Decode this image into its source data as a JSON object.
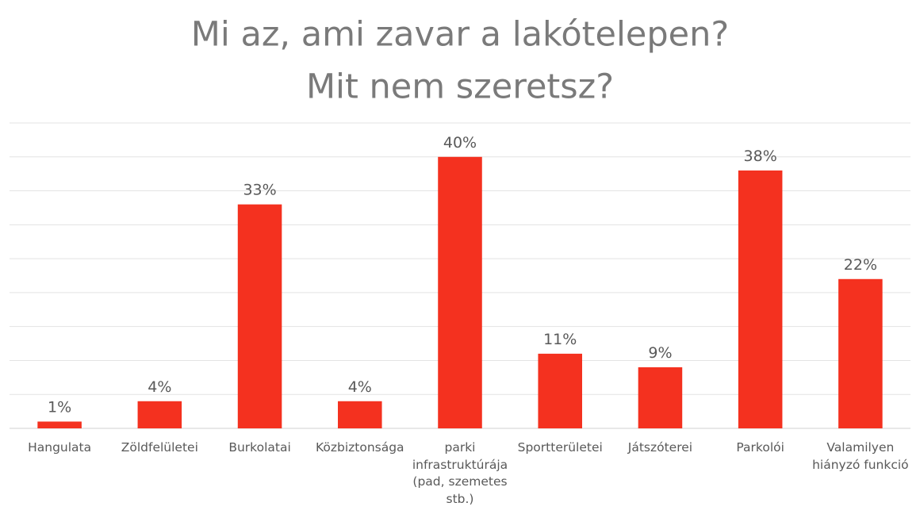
{
  "chart_data": {
    "type": "bar",
    "title": [
      "Mi az, ami zavar a lakótelepen?",
      "Mit nem szeretsz?"
    ],
    "categories": [
      "Hangulata",
      "Zöldfelületei",
      "Burkolatai",
      "Közbiztonsága",
      "parki infrastruktúrája (pad, szemetes stb.)",
      "Sportterületei",
      "Játszóterei",
      "Parkolói",
      "Valamilyen hiányzó funkció"
    ],
    "values": [
      1,
      4,
      33,
      4,
      40,
      11,
      9,
      38,
      22
    ],
    "value_labels": [
      "1%",
      "4%",
      "33%",
      "4%",
      "40%",
      "11%",
      "9%",
      "38%",
      "22%"
    ],
    "color": "#f4311f",
    "ylim": [
      0,
      45
    ],
    "yticks": [
      0,
      5,
      10,
      15,
      20,
      25,
      30,
      35,
      40,
      45
    ],
    "grid": true
  }
}
